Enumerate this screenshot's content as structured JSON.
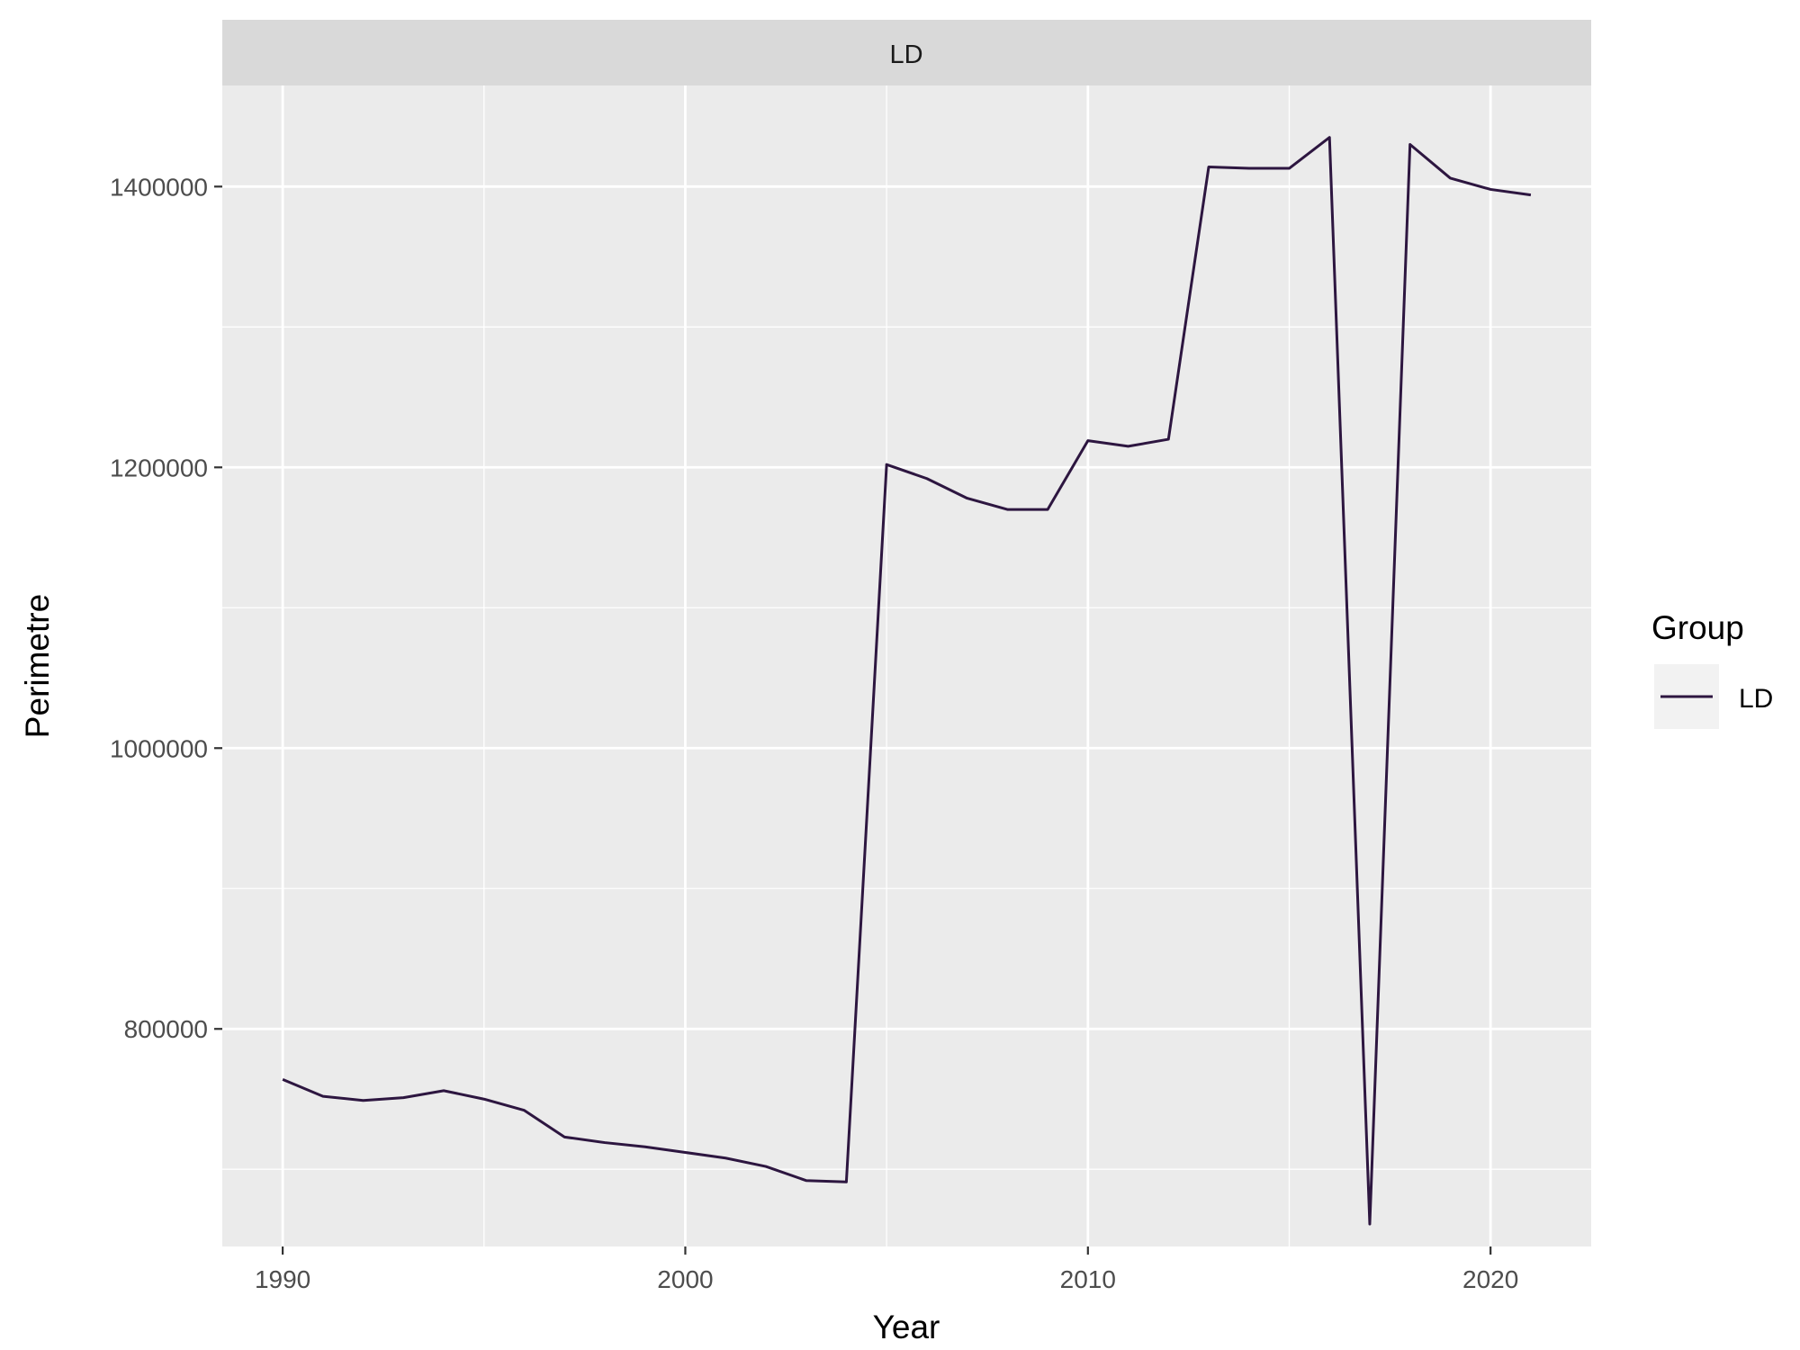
{
  "chart_data": {
    "type": "line",
    "panel_title": "LD",
    "xlabel": "Year",
    "ylabel": "Perimetre",
    "xlim": [
      1988.5,
      2022.5
    ],
    "ylim": [
      645000,
      1472000
    ],
    "x_ticks": [
      1990,
      2000,
      2010,
      2020
    ],
    "x_tick_labels": [
      "1990",
      "2000",
      "2010",
      "2020"
    ],
    "y_ticks": [
      800000,
      1000000,
      1200000,
      1400000
    ],
    "y_tick_labels": [
      "800000",
      "1000000",
      "1200000",
      "1400000"
    ],
    "grid": true,
    "legend": {
      "title": "Group",
      "position": "right",
      "entries": [
        {
          "label": "LD",
          "color": "#2d1640"
        }
      ]
    },
    "series": [
      {
        "name": "LD",
        "color": "#2d1640",
        "x": [
          1990,
          1991,
          1992,
          1993,
          1994,
          1995,
          1996,
          1997,
          1998,
          1999,
          2000,
          2001,
          2002,
          2003,
          2004,
          2005,
          2006,
          2007,
          2008,
          2009,
          2010,
          2011,
          2012,
          2013,
          2014,
          2015,
          2016,
          2017,
          2018,
          2019,
          2020,
          2021
        ],
        "y": [
          764000,
          752000,
          749000,
          751000,
          756000,
          750000,
          742000,
          723000,
          719000,
          716000,
          712000,
          708000,
          702000,
          692000,
          691000,
          1202000,
          1192000,
          1178000,
          1170000,
          1170000,
          1219000,
          1215000,
          1220000,
          1414000,
          1413000,
          1413000,
          1435000,
          661000,
          1430000,
          1406000,
          1398000,
          1394000
        ]
      }
    ]
  }
}
